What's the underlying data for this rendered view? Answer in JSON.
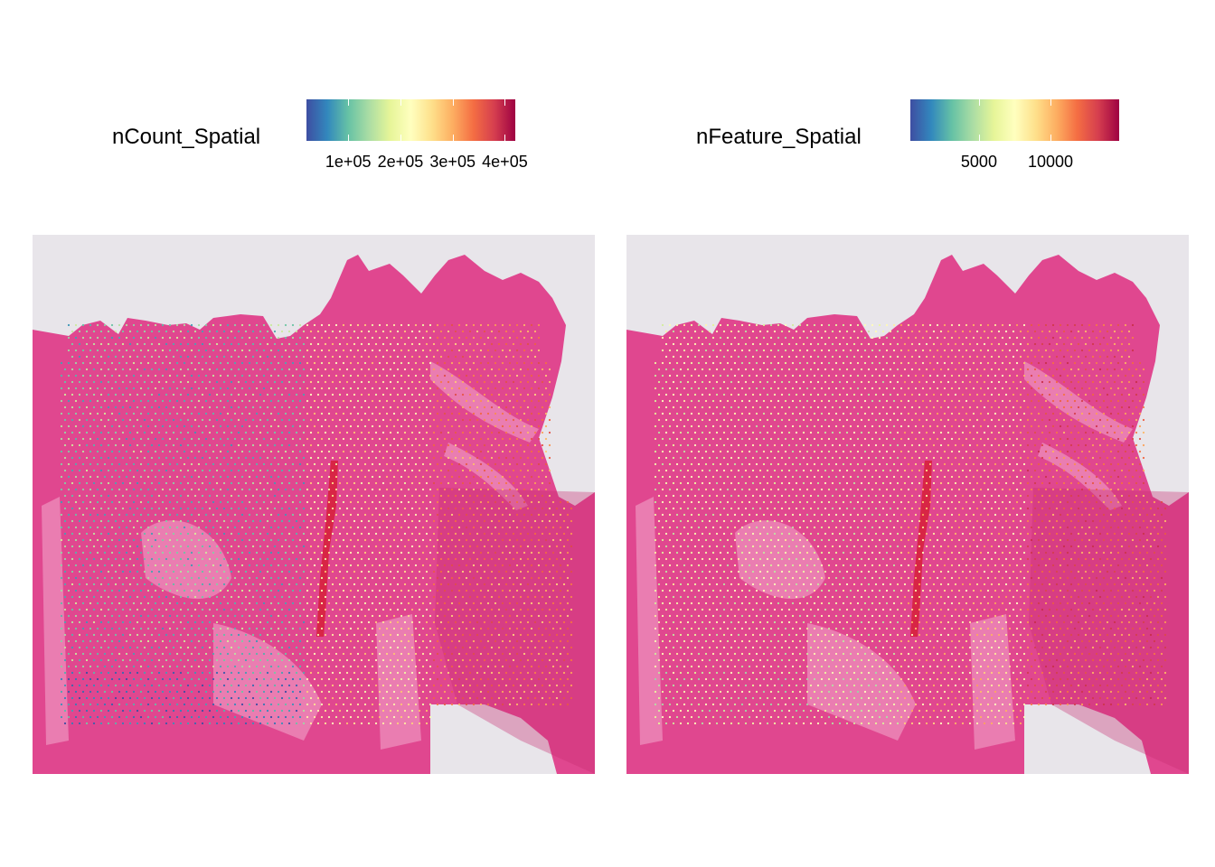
{
  "chart_data": [
    {
      "type": "heatmap",
      "subtype": "spatial feature plot over tissue image",
      "legend_title": "nCount_Spatial",
      "colorscale": "Spectral (reversed)",
      "scale_min": 20000,
      "scale_max": 420000,
      "tick_values": [
        100000,
        200000,
        300000,
        400000
      ],
      "tick_labels": [
        "1e+05",
        "2e+05",
        "3e+05",
        "4e+05"
      ],
      "colors": [
        "#3e4ea2",
        "#3288bd",
        "#66c2a5",
        "#abdda4",
        "#e6f598",
        "#ffffbf",
        "#fee08b",
        "#fdae61",
        "#f46d43",
        "#d53e4f",
        "#9e0142"
      ]
    },
    {
      "type": "heatmap",
      "subtype": "spatial feature plot over tissue image",
      "legend_title": "nFeature_Spatial",
      "colorscale": "Spectral (reversed)",
      "scale_min": 200,
      "scale_max": 14800,
      "tick_values": [
        5000,
        10000
      ],
      "tick_labels": [
        "5000",
        "10000"
      ],
      "colors": [
        "#3e4ea2",
        "#3288bd",
        "#66c2a5",
        "#abdda4",
        "#e6f598",
        "#ffffbf",
        "#fee08b",
        "#fdae61",
        "#f46d43",
        "#d53e4f",
        "#9e0142"
      ]
    }
  ],
  "tissue": {
    "background": "#e8e5ea",
    "stain": "#e0478f",
    "stain_light": "#ee8fbc",
    "stain_dark": "#c52a6f",
    "vessel": "#d62038"
  }
}
